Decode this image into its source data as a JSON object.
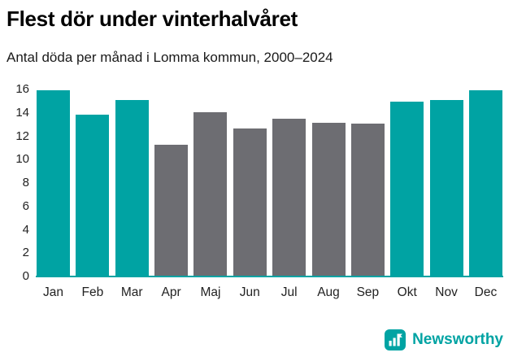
{
  "header": {
    "title": "Flest dör under vinterhalvåret",
    "subtitle": "Antal döda per månad i Lomma kommun, 2000–2024"
  },
  "chart_data": {
    "type": "bar",
    "title": "Flest dör under vinterhalvåret",
    "subtitle": "Antal döda per månad i Lomma kommun, 2000–2024",
    "categories": [
      "Jan",
      "Feb",
      "Mar",
      "Apr",
      "Maj",
      "Jun",
      "Jul",
      "Aug",
      "Sep",
      "Okt",
      "Nov",
      "Dec"
    ],
    "values": [
      16,
      13.8,
      15,
      11.2,
      14,
      12.6,
      13.4,
      13.1,
      13,
      14.9,
      15,
      16
    ],
    "colors": [
      "#00a3a3",
      "#00a3a3",
      "#00a3a3",
      "#6d6d72",
      "#6d6d72",
      "#6d6d72",
      "#6d6d72",
      "#6d6d72",
      "#6d6d72",
      "#00a3a3",
      "#00a3a3",
      "#00a3a3"
    ],
    "xlabel": "",
    "ylabel": "",
    "ylim": [
      0,
      16
    ],
    "yticks": [
      0,
      2,
      4,
      6,
      8,
      10,
      12,
      14,
      16
    ],
    "grid": false,
    "legend": "none",
    "winter_color": "#00a3a3",
    "summer_color": "#6d6d72",
    "axis_line_color": "#00a3a3"
  },
  "footer": {
    "brand": "Newsworthy",
    "brand_color": "#00a3a3",
    "logo_icon": "bar-chart-flag-icon"
  }
}
